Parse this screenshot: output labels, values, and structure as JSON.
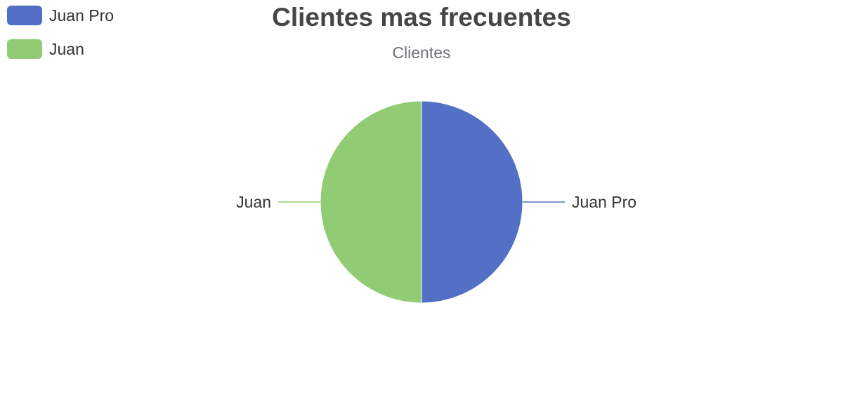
{
  "title": "Clientes mas frecuentes",
  "subtitle": "Clientes",
  "colors": {
    "series": [
      "#5470c6",
      "#91cc75"
    ]
  },
  "legend": {
    "placement": "top-left",
    "items": [
      {
        "label": "Juan Pro",
        "color": "#5470c6"
      },
      {
        "label": "Juan",
        "color": "#91cc75"
      }
    ]
  },
  "chart_data": {
    "type": "pie",
    "title": "Clientes mas frecuentes",
    "subtitle": "Clientes",
    "categories": [
      "Juan Pro",
      "Juan"
    ],
    "values": [
      1,
      1
    ],
    "legend_placement": "top-left"
  }
}
